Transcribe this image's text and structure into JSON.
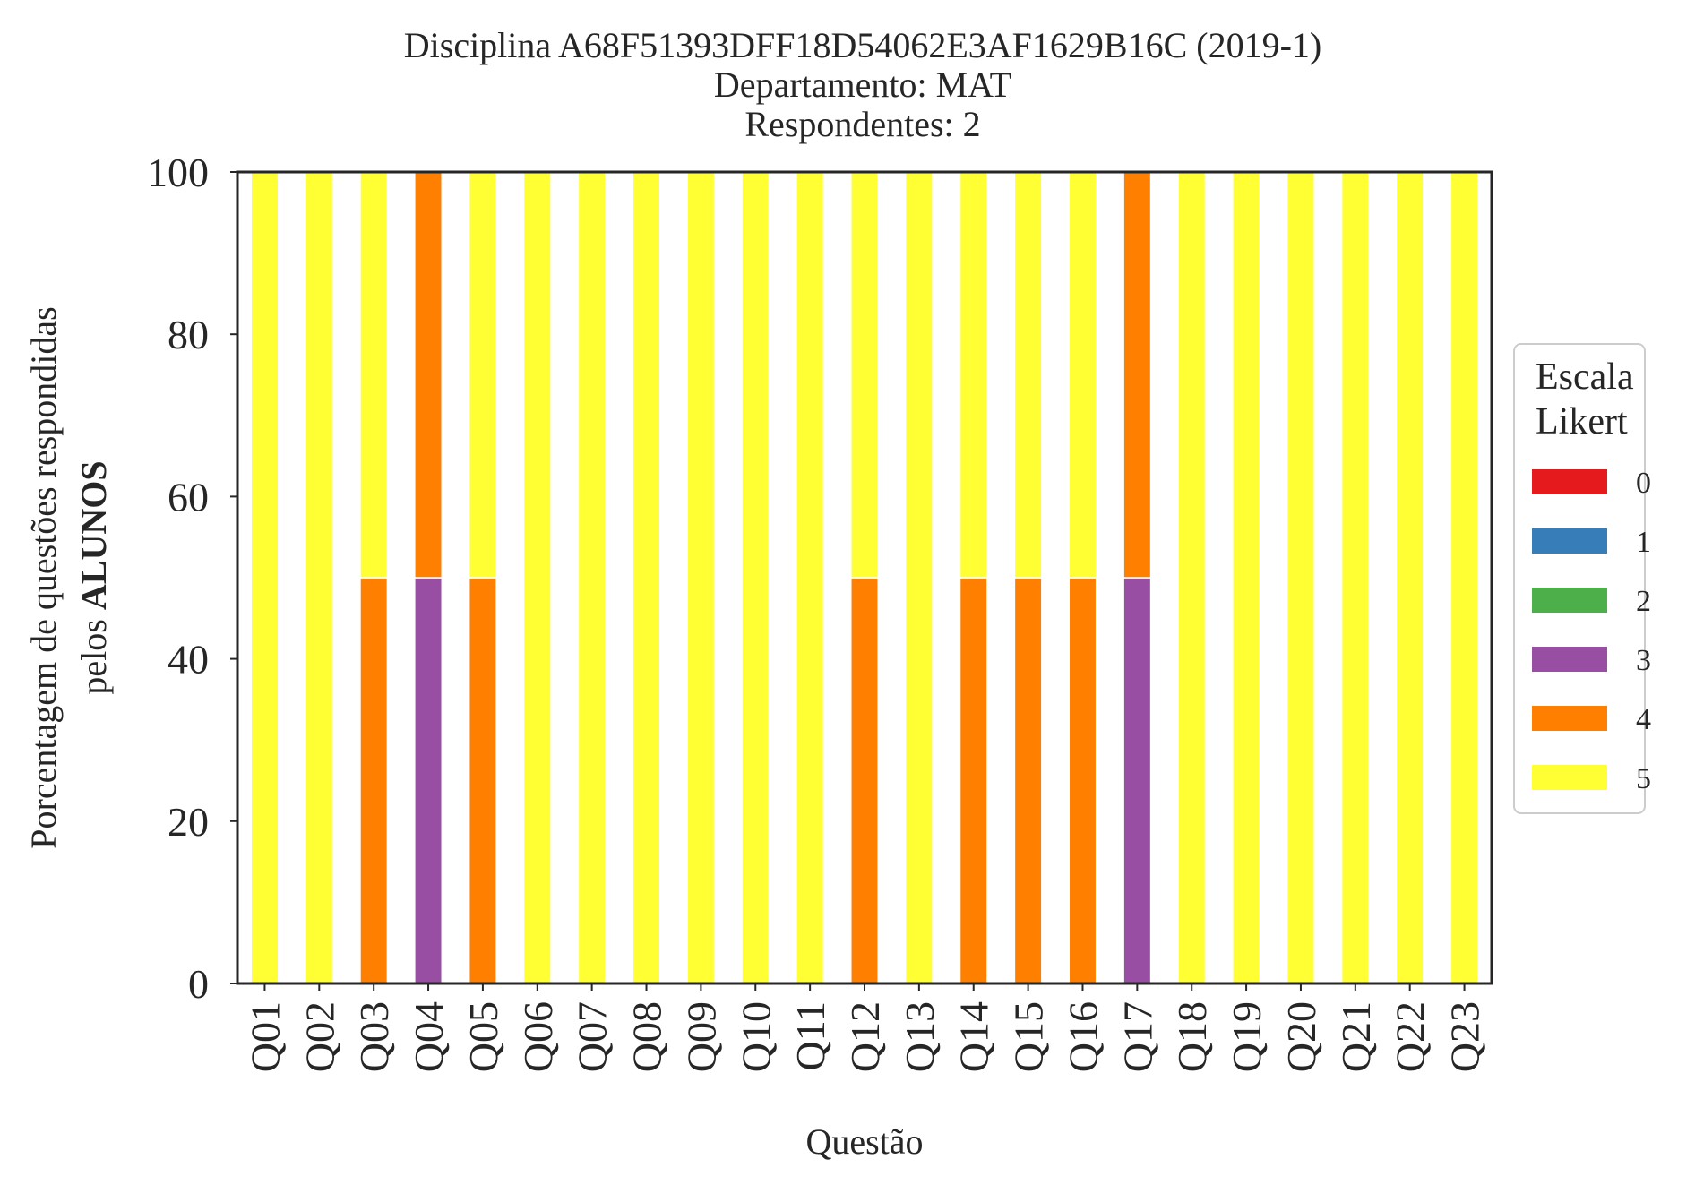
{
  "chart_data": {
    "type": "bar",
    "stacked": true,
    "title_lines": [
      "Disciplina A68F51393DFF18D54062E3AF1629B16C (2019-1)",
      "Departamento: MAT",
      "Respondentes: 2"
    ],
    "xlabel": "Questão",
    "ylabel_line1": "Porcentagem de questões respondidas",
    "ylabel_line2_prefix": "pelos ",
    "ylabel_line2_bold": "ALUNOS",
    "ylim": [
      0,
      100
    ],
    "yticks": [
      0,
      20,
      40,
      60,
      80,
      100
    ],
    "grid": false,
    "categories": [
      "Q01",
      "Q02",
      "Q03",
      "Q04",
      "Q05",
      "Q06",
      "Q07",
      "Q08",
      "Q09",
      "Q10",
      "Q11",
      "Q12",
      "Q13",
      "Q14",
      "Q15",
      "Q16",
      "Q17",
      "Q18",
      "Q19",
      "Q20",
      "Q21",
      "Q22",
      "Q23"
    ],
    "legend": {
      "title_lines": [
        "Escala",
        "Likert"
      ],
      "placement": "center-right-outside"
    },
    "series": [
      {
        "name": "0",
        "color": "#e41a1c",
        "values": [
          0,
          0,
          0,
          0,
          0,
          0,
          0,
          0,
          0,
          0,
          0,
          0,
          0,
          0,
          0,
          0,
          0,
          0,
          0,
          0,
          0,
          0,
          0
        ]
      },
      {
        "name": "1",
        "color": "#377eb8",
        "values": [
          0,
          0,
          0,
          0,
          0,
          0,
          0,
          0,
          0,
          0,
          0,
          0,
          0,
          0,
          0,
          0,
          0,
          0,
          0,
          0,
          0,
          0,
          0
        ]
      },
      {
        "name": "2",
        "color": "#4daf4a",
        "values": [
          0,
          0,
          0,
          0,
          0,
          0,
          0,
          0,
          0,
          0,
          0,
          0,
          0,
          0,
          0,
          0,
          0,
          0,
          0,
          0,
          0,
          0,
          0
        ]
      },
      {
        "name": "3",
        "color": "#984ea3",
        "values": [
          0,
          0,
          0,
          50,
          0,
          0,
          0,
          0,
          0,
          0,
          0,
          0,
          0,
          0,
          0,
          0,
          50,
          0,
          0,
          0,
          0,
          0,
          0
        ]
      },
      {
        "name": "4",
        "color": "#ff7f00",
        "values": [
          0,
          0,
          50,
          50,
          50,
          0,
          0,
          0,
          0,
          0,
          0,
          50,
          0,
          50,
          50,
          50,
          50,
          0,
          0,
          0,
          0,
          0,
          0
        ]
      },
      {
        "name": "5",
        "color": "#ffff33",
        "values": [
          100,
          100,
          50,
          0,
          50,
          100,
          100,
          100,
          100,
          100,
          100,
          50,
          100,
          50,
          50,
          50,
          0,
          100,
          100,
          100,
          100,
          100,
          100
        ]
      }
    ]
  }
}
